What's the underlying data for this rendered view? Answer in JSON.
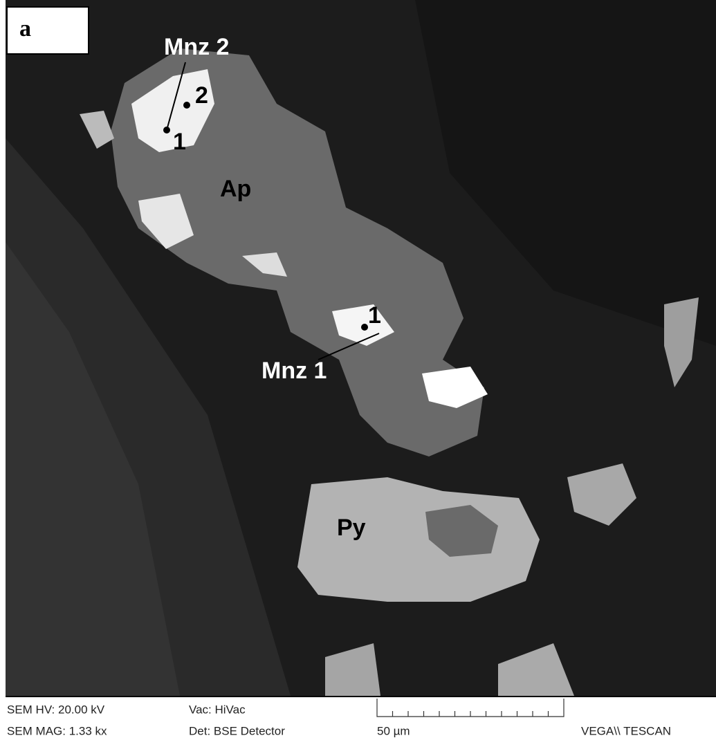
{
  "panel_label": "a",
  "annotations": {
    "mnz2": "Mnz 2",
    "mnz2_point2": "2",
    "mnz2_point1": "1",
    "ap": "Ap",
    "mnz1_point1": "1",
    "mnz1": "Mnz 1",
    "py": "Py"
  },
  "footer": {
    "hv": "SEM HV: 20.00 kV",
    "vac": "Vac: HiVac",
    "mag": "SEM MAG: 1.33 kx",
    "det": "Det: BSE Detector",
    "scale": "50 µm",
    "brand": "VEGA\\\\ TESCAN"
  }
}
